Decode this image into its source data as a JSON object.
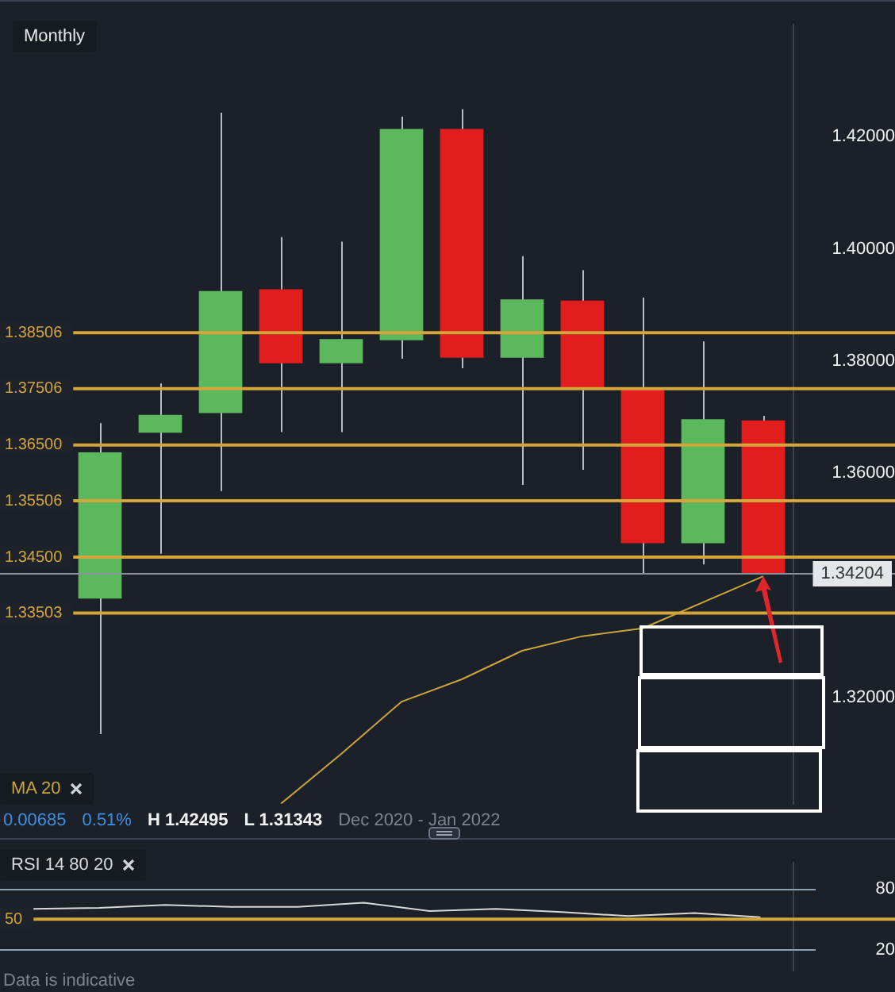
{
  "chart_data": [
    {
      "type": "candlestick",
      "title": "Monthly",
      "categories": [
        null,
        null,
        null,
        null,
        null,
        null,
        null,
        null,
        null,
        null,
        null,
        null
      ],
      "ohlc": [
        [
          1.3376,
          1.3689,
          1.31343,
          1.3637
        ],
        [
          1.3672,
          1.376,
          1.3456,
          1.3704
        ],
        [
          1.3707,
          1.4243,
          1.3568,
          1.3925
        ],
        [
          1.3928,
          1.4021,
          1.3673,
          1.3796
        ],
        [
          1.3796,
          1.4013,
          1.3673,
          1.3839
        ],
        [
          1.3837,
          1.4236,
          1.3804,
          1.4214
        ],
        [
          1.4214,
          1.42495,
          1.3787,
          1.3806
        ],
        [
          1.3806,
          1.3987,
          1.3579,
          1.391
        ],
        [
          1.3908,
          1.3962,
          1.3606,
          1.3751
        ],
        [
          1.3751,
          1.3913,
          1.3419,
          1.3475
        ],
        [
          1.3475,
          1.3835,
          1.3437,
          1.3696
        ],
        [
          1.3694,
          1.3702,
          1.34204,
          1.34204
        ]
      ],
      "colors": [
        "#5cb85c",
        "#5cb85c",
        "#5cb85c",
        "#e21d1d",
        "#5cb85c",
        "#5cb85c",
        "#e21d1d",
        "#5cb85c",
        "#e21d1d",
        "#e21d1d",
        "#5cb85c",
        "#e21d1d"
      ],
      "series": [
        {
          "name": "MA 20",
          "type": "line",
          "color": "#c9a43c",
          "values": [
            null,
            null,
            null,
            1.301,
            1.3099,
            1.3192,
            1.3232,
            1.3283,
            1.3309,
            1.3323,
            null,
            1.3416
          ]
        }
      ],
      "ylim": [
        1.301,
        1.44
      ],
      "yticks": [
        {
          "value": 1.32,
          "label": "1.32000"
        },
        {
          "value": 1.36,
          "label": "1.36000"
        },
        {
          "value": 1.38,
          "label": "1.38000"
        },
        {
          "value": 1.4,
          "label": "1.40000"
        },
        {
          "value": 1.42,
          "label": "1.42000"
        }
      ],
      "ref_lines": [
        {
          "axis": "y",
          "value": 1.38506,
          "label": "1.38506",
          "color": "#d4a53a"
        },
        {
          "axis": "y",
          "value": 1.37506,
          "label": "1.37506",
          "color": "#d4a53a"
        },
        {
          "axis": "y",
          "value": 1.365,
          "label": "1.36500",
          "color": "#d4a53a"
        },
        {
          "axis": "y",
          "value": 1.35506,
          "label": "1.35506",
          "color": "#d4a53a"
        },
        {
          "axis": "y",
          "value": 1.345,
          "label": "1.34500",
          "color": "#d4a53a"
        },
        {
          "axis": "y",
          "value": 1.33503,
          "label": "1.33503",
          "color": "#d4a53a"
        },
        {
          "axis": "y",
          "value": 1.34204,
          "color": "#8a919c"
        }
      ],
      "annotations": [
        "0.00685",
        "0.51%",
        "H 1.42495",
        "L 1.31343",
        "Dec 2020 - Jan 2022",
        {
          "text": "1.34204",
          "y": 1.34204
        }
      ],
      "tick_labels": "y",
      "marker": "none"
    },
    {
      "type": "line",
      "categories": [
        null,
        null,
        null,
        null,
        null,
        null,
        null,
        null,
        null,
        null,
        null,
        null
      ],
      "series": [
        {
          "name": "RSI 14 80 20",
          "color": "#d8d8d8",
          "values": [
            60,
            61,
            64,
            62,
            62,
            66,
            58,
            60,
            57,
            53,
            56,
            52
          ]
        }
      ],
      "ylim": [
        0,
        105
      ],
      "yticks": [
        20,
        80
      ],
      "grid": "y",
      "ref_lines": [
        {
          "axis": "y",
          "value": 50,
          "label": "50",
          "color": "#d4a53a"
        }
      ],
      "annotations": [
        "Data is indicative"
      ],
      "tick_labels": "y",
      "marker": "none"
    }
  ]
}
